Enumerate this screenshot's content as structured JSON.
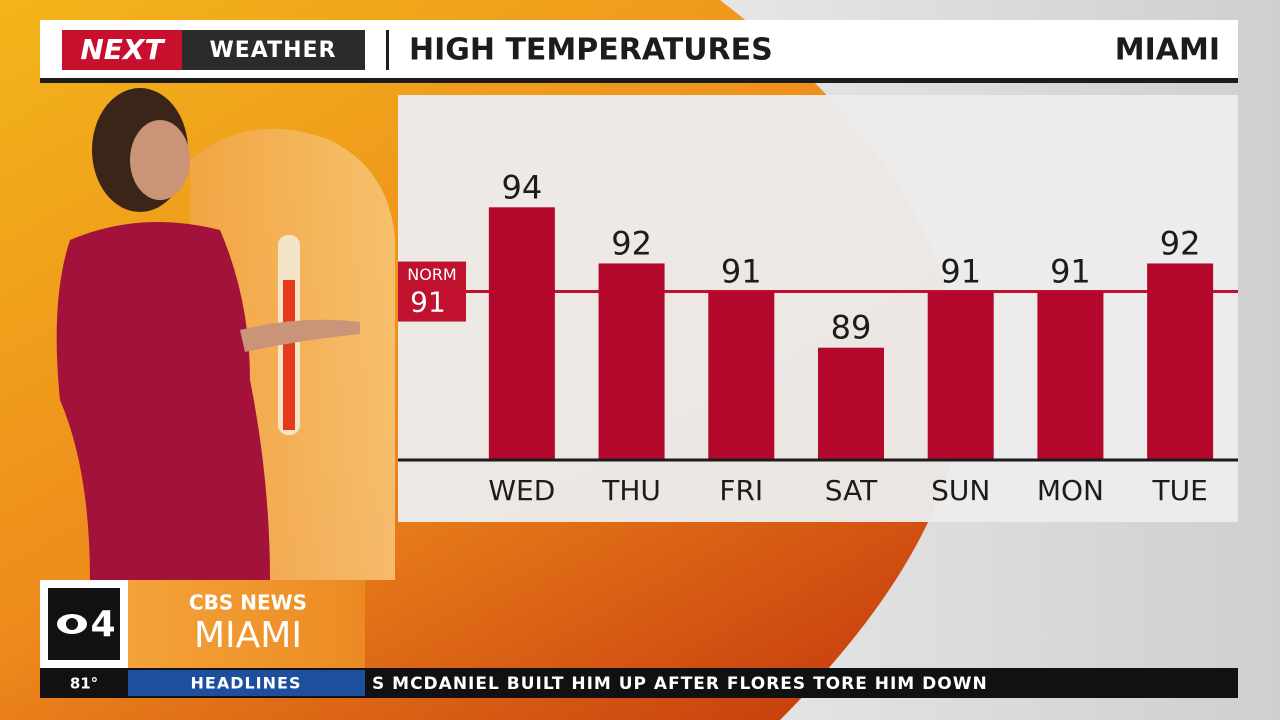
{
  "branding": {
    "show": "NEXT",
    "segment": "WEATHER",
    "station": "4",
    "network": "CBS NEWS",
    "city": "MIAMI"
  },
  "header": {
    "location": "MIAMI"
  },
  "ticker": {
    "temperature": "81°",
    "section": "HEADLINES",
    "headline": "S MCDANIEL BUILT HIM UP AFTER FLORES TORE HIM DOWN"
  },
  "chart_data": {
    "type": "bar",
    "title": "HIGH TEMPERATURES",
    "categories": [
      "WED",
      "THU",
      "FRI",
      "SAT",
      "SUN",
      "MON",
      "TUE"
    ],
    "values": [
      94,
      92,
      91,
      89,
      91,
      91,
      92
    ],
    "color": "#b3072b",
    "ylim": [
      85,
      98
    ],
    "annotations": [
      {
        "label": "NORM",
        "value": 91,
        "color": "#c0112f"
      }
    ]
  }
}
